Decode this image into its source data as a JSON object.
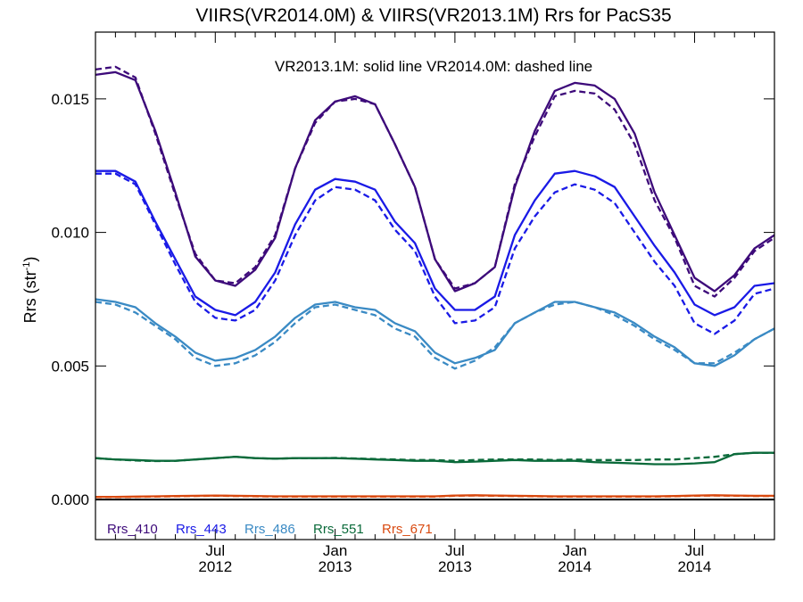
{
  "chart_data": {
    "type": "line",
    "title": "VIIRS(VR2014.0M) & VIIRS(VR2013.1M)  Rrs for PacS35",
    "annotation": "VR2013.1M: solid line   VR2014.0M: dashed line",
    "ylabel_main": "Rrs (str",
    "ylabel_sup": "-1",
    "ylabel_close": ")",
    "xlabel": "",
    "ylim": [
      -0.0015,
      0.0175
    ],
    "y_ticks": [
      0.0,
      0.005,
      0.01,
      0.015
    ],
    "y_tick_labels": [
      "0.000",
      "0.005",
      "0.010",
      "0.015"
    ],
    "x_ticks": [
      {
        "date": "2012-07",
        "month": "Jul",
        "year": "2012"
      },
      {
        "date": "2013-01",
        "month": "Jan",
        "year": "2013"
      },
      {
        "date": "2013-07",
        "month": "Jul",
        "year": "2013"
      },
      {
        "date": "2014-01",
        "month": "Jan",
        "year": "2014"
      },
      {
        "date": "2014-07",
        "month": "Jul",
        "year": "2014"
      }
    ],
    "xlim": [
      "2012-01",
      "2014-11"
    ],
    "x": [
      "2012-01",
      "2012-02",
      "2012-03",
      "2012-04",
      "2012-05",
      "2012-06",
      "2012-07",
      "2012-08",
      "2012-09",
      "2012-10",
      "2012-11",
      "2012-12",
      "2013-01",
      "2013-02",
      "2013-03",
      "2013-04",
      "2013-05",
      "2013-06",
      "2013-07",
      "2013-08",
      "2013-09",
      "2013-10",
      "2013-11",
      "2013-12",
      "2014-01",
      "2014-02",
      "2014-03",
      "2014-04",
      "2014-05",
      "2014-06",
      "2014-07",
      "2014-08",
      "2014-09",
      "2014-10",
      "2014-11"
    ],
    "legend_position": "bottom-left",
    "series": [
      {
        "name": "Rrs_410",
        "color": "#3d0a7a",
        "style": "solid",
        "values": [
          0.0159,
          0.016,
          0.0157,
          0.0138,
          0.0115,
          0.0091,
          0.0082,
          0.008,
          0.0086,
          0.0098,
          0.0124,
          0.0142,
          0.0149,
          0.0151,
          0.0148,
          0.0133,
          0.0117,
          0.009,
          0.0078,
          0.0081,
          0.0087,
          0.0117,
          0.0138,
          0.0153,
          0.0156,
          0.0155,
          0.015,
          0.0137,
          0.0115,
          0.0099,
          0.0083,
          0.0078,
          0.0084,
          0.0094,
          0.0099
        ]
      },
      {
        "name": "Rrs_410",
        "color": "#3d0a7a",
        "style": "dashed",
        "values": [
          0.0161,
          0.0162,
          0.0158,
          0.0137,
          0.0114,
          0.0092,
          0.0082,
          0.0081,
          0.0087,
          0.0099,
          0.0124,
          0.0141,
          0.0149,
          0.015,
          0.0148,
          0.0133,
          0.0117,
          0.009,
          0.0079,
          0.0081,
          0.0087,
          0.0118,
          0.0136,
          0.0151,
          0.0153,
          0.0152,
          0.0146,
          0.0133,
          0.0112,
          0.0098,
          0.008,
          0.0076,
          0.0083,
          0.0093,
          0.0098
        ]
      },
      {
        "name": "Rrs_443",
        "color": "#1a1ae6",
        "style": "solid",
        "values": [
          0.0123,
          0.0123,
          0.0119,
          0.0104,
          0.009,
          0.0076,
          0.0071,
          0.0069,
          0.0074,
          0.0085,
          0.0103,
          0.0116,
          0.012,
          0.0119,
          0.0116,
          0.0104,
          0.0096,
          0.0079,
          0.0071,
          0.0071,
          0.0076,
          0.0099,
          0.0112,
          0.0122,
          0.0123,
          0.0121,
          0.0117,
          0.0106,
          0.0095,
          0.0085,
          0.0073,
          0.0069,
          0.0072,
          0.008,
          0.0081
        ]
      },
      {
        "name": "Rrs_443",
        "color": "#1a1ae6",
        "style": "dashed",
        "values": [
          0.0122,
          0.0122,
          0.0118,
          0.0103,
          0.0088,
          0.0074,
          0.0068,
          0.0067,
          0.0071,
          0.0082,
          0.0099,
          0.0112,
          0.0117,
          0.0116,
          0.0112,
          0.0101,
          0.0093,
          0.0076,
          0.0066,
          0.0067,
          0.0072,
          0.0094,
          0.0106,
          0.0115,
          0.0118,
          0.0116,
          0.0111,
          0.01,
          0.0089,
          0.008,
          0.0066,
          0.0062,
          0.0067,
          0.0077,
          0.0079
        ]
      },
      {
        "name": "Rrs_486",
        "color": "#3a8ac4",
        "style": "solid",
        "values": [
          0.0075,
          0.0074,
          0.0072,
          0.0066,
          0.0061,
          0.0055,
          0.0052,
          0.0053,
          0.0056,
          0.0061,
          0.0068,
          0.0073,
          0.0074,
          0.0072,
          0.0071,
          0.0066,
          0.0063,
          0.0055,
          0.0051,
          0.0053,
          0.0056,
          0.0066,
          0.007,
          0.0074,
          0.0074,
          0.0072,
          0.007,
          0.0066,
          0.0061,
          0.0057,
          0.0051,
          0.005,
          0.0054,
          0.006,
          0.0064
        ]
      },
      {
        "name": "Rrs_486",
        "color": "#3a8ac4",
        "style": "dashed",
        "values": [
          0.0074,
          0.0073,
          0.007,
          0.0065,
          0.006,
          0.0053,
          0.005,
          0.0051,
          0.0054,
          0.0059,
          0.0066,
          0.0072,
          0.0073,
          0.0071,
          0.0069,
          0.0064,
          0.0061,
          0.0053,
          0.0049,
          0.0052,
          0.0057,
          0.0066,
          0.007,
          0.0073,
          0.0074,
          0.0072,
          0.0069,
          0.0065,
          0.006,
          0.0056,
          0.0051,
          0.0051,
          0.0055,
          0.006,
          0.0064
        ]
      },
      {
        "name": "Rrs_551",
        "color": "#0a6a3a",
        "style": "solid",
        "values": [
          0.00155,
          0.0015,
          0.00148,
          0.00145,
          0.00145,
          0.0015,
          0.00155,
          0.0016,
          0.00155,
          0.00153,
          0.00155,
          0.00155,
          0.00155,
          0.00153,
          0.0015,
          0.00148,
          0.00145,
          0.00145,
          0.0014,
          0.00142,
          0.00145,
          0.00148,
          0.00145,
          0.00145,
          0.00145,
          0.0014,
          0.00138,
          0.00135,
          0.00132,
          0.00132,
          0.00135,
          0.0014,
          0.0017,
          0.00175,
          0.00175
        ]
      },
      {
        "name": "Rrs_551",
        "color": "#0a6a3a",
        "style": "dashed",
        "values": [
          0.00155,
          0.0015,
          0.00146,
          0.00144,
          0.00145,
          0.0015,
          0.00155,
          0.0016,
          0.00155,
          0.00153,
          0.00155,
          0.00155,
          0.00156,
          0.00154,
          0.00152,
          0.0015,
          0.00148,
          0.00148,
          0.00145,
          0.00148,
          0.0015,
          0.0015,
          0.0015,
          0.00148,
          0.0015,
          0.00148,
          0.00148,
          0.00148,
          0.0015,
          0.0015,
          0.00155,
          0.0016,
          0.0017,
          0.00175,
          0.00175
        ]
      },
      {
        "name": "Rrs_671",
        "color": "#d94a10",
        "style": "solid",
        "values": [
          0.0001,
          0.0001,
          0.00011,
          0.00012,
          0.00013,
          0.00014,
          0.00015,
          0.00014,
          0.00013,
          0.00012,
          0.00012,
          0.00012,
          0.00012,
          0.00012,
          0.00012,
          0.00012,
          0.00012,
          0.00012,
          0.00015,
          0.00016,
          0.00015,
          0.00014,
          0.00013,
          0.00012,
          0.00012,
          0.00012,
          0.00012,
          0.00012,
          0.00012,
          0.00013,
          0.00015,
          0.00016,
          0.00015,
          0.00014,
          0.00014
        ]
      },
      {
        "name": "Rrs_671",
        "color": "#d94a10",
        "style": "dashed",
        "values": [
          9e-05,
          9e-05,
          0.0001,
          0.00011,
          0.00012,
          0.00013,
          0.00014,
          0.00013,
          0.00012,
          0.00011,
          0.00011,
          0.00011,
          0.00011,
          0.00011,
          0.00011,
          0.00011,
          0.00011,
          0.00011,
          0.00014,
          0.00015,
          0.00014,
          0.00013,
          0.00012,
          0.00011,
          0.00011,
          0.00011,
          0.00011,
          0.00011,
          0.00011,
          0.00012,
          0.00014,
          0.00015,
          0.00014,
          0.00013,
          0.00013
        ]
      }
    ],
    "legend": [
      {
        "label": "Rrs_410",
        "color": "#3d0a7a"
      },
      {
        "label": "Rrs_443",
        "color": "#1a1ae6"
      },
      {
        "label": "Rrs_486",
        "color": "#3a8ac4"
      },
      {
        "label": "Rrs_551",
        "color": "#0a6a3a"
      },
      {
        "label": "Rrs_671",
        "color": "#d94a10"
      }
    ],
    "zero_line": true,
    "grid": false
  }
}
